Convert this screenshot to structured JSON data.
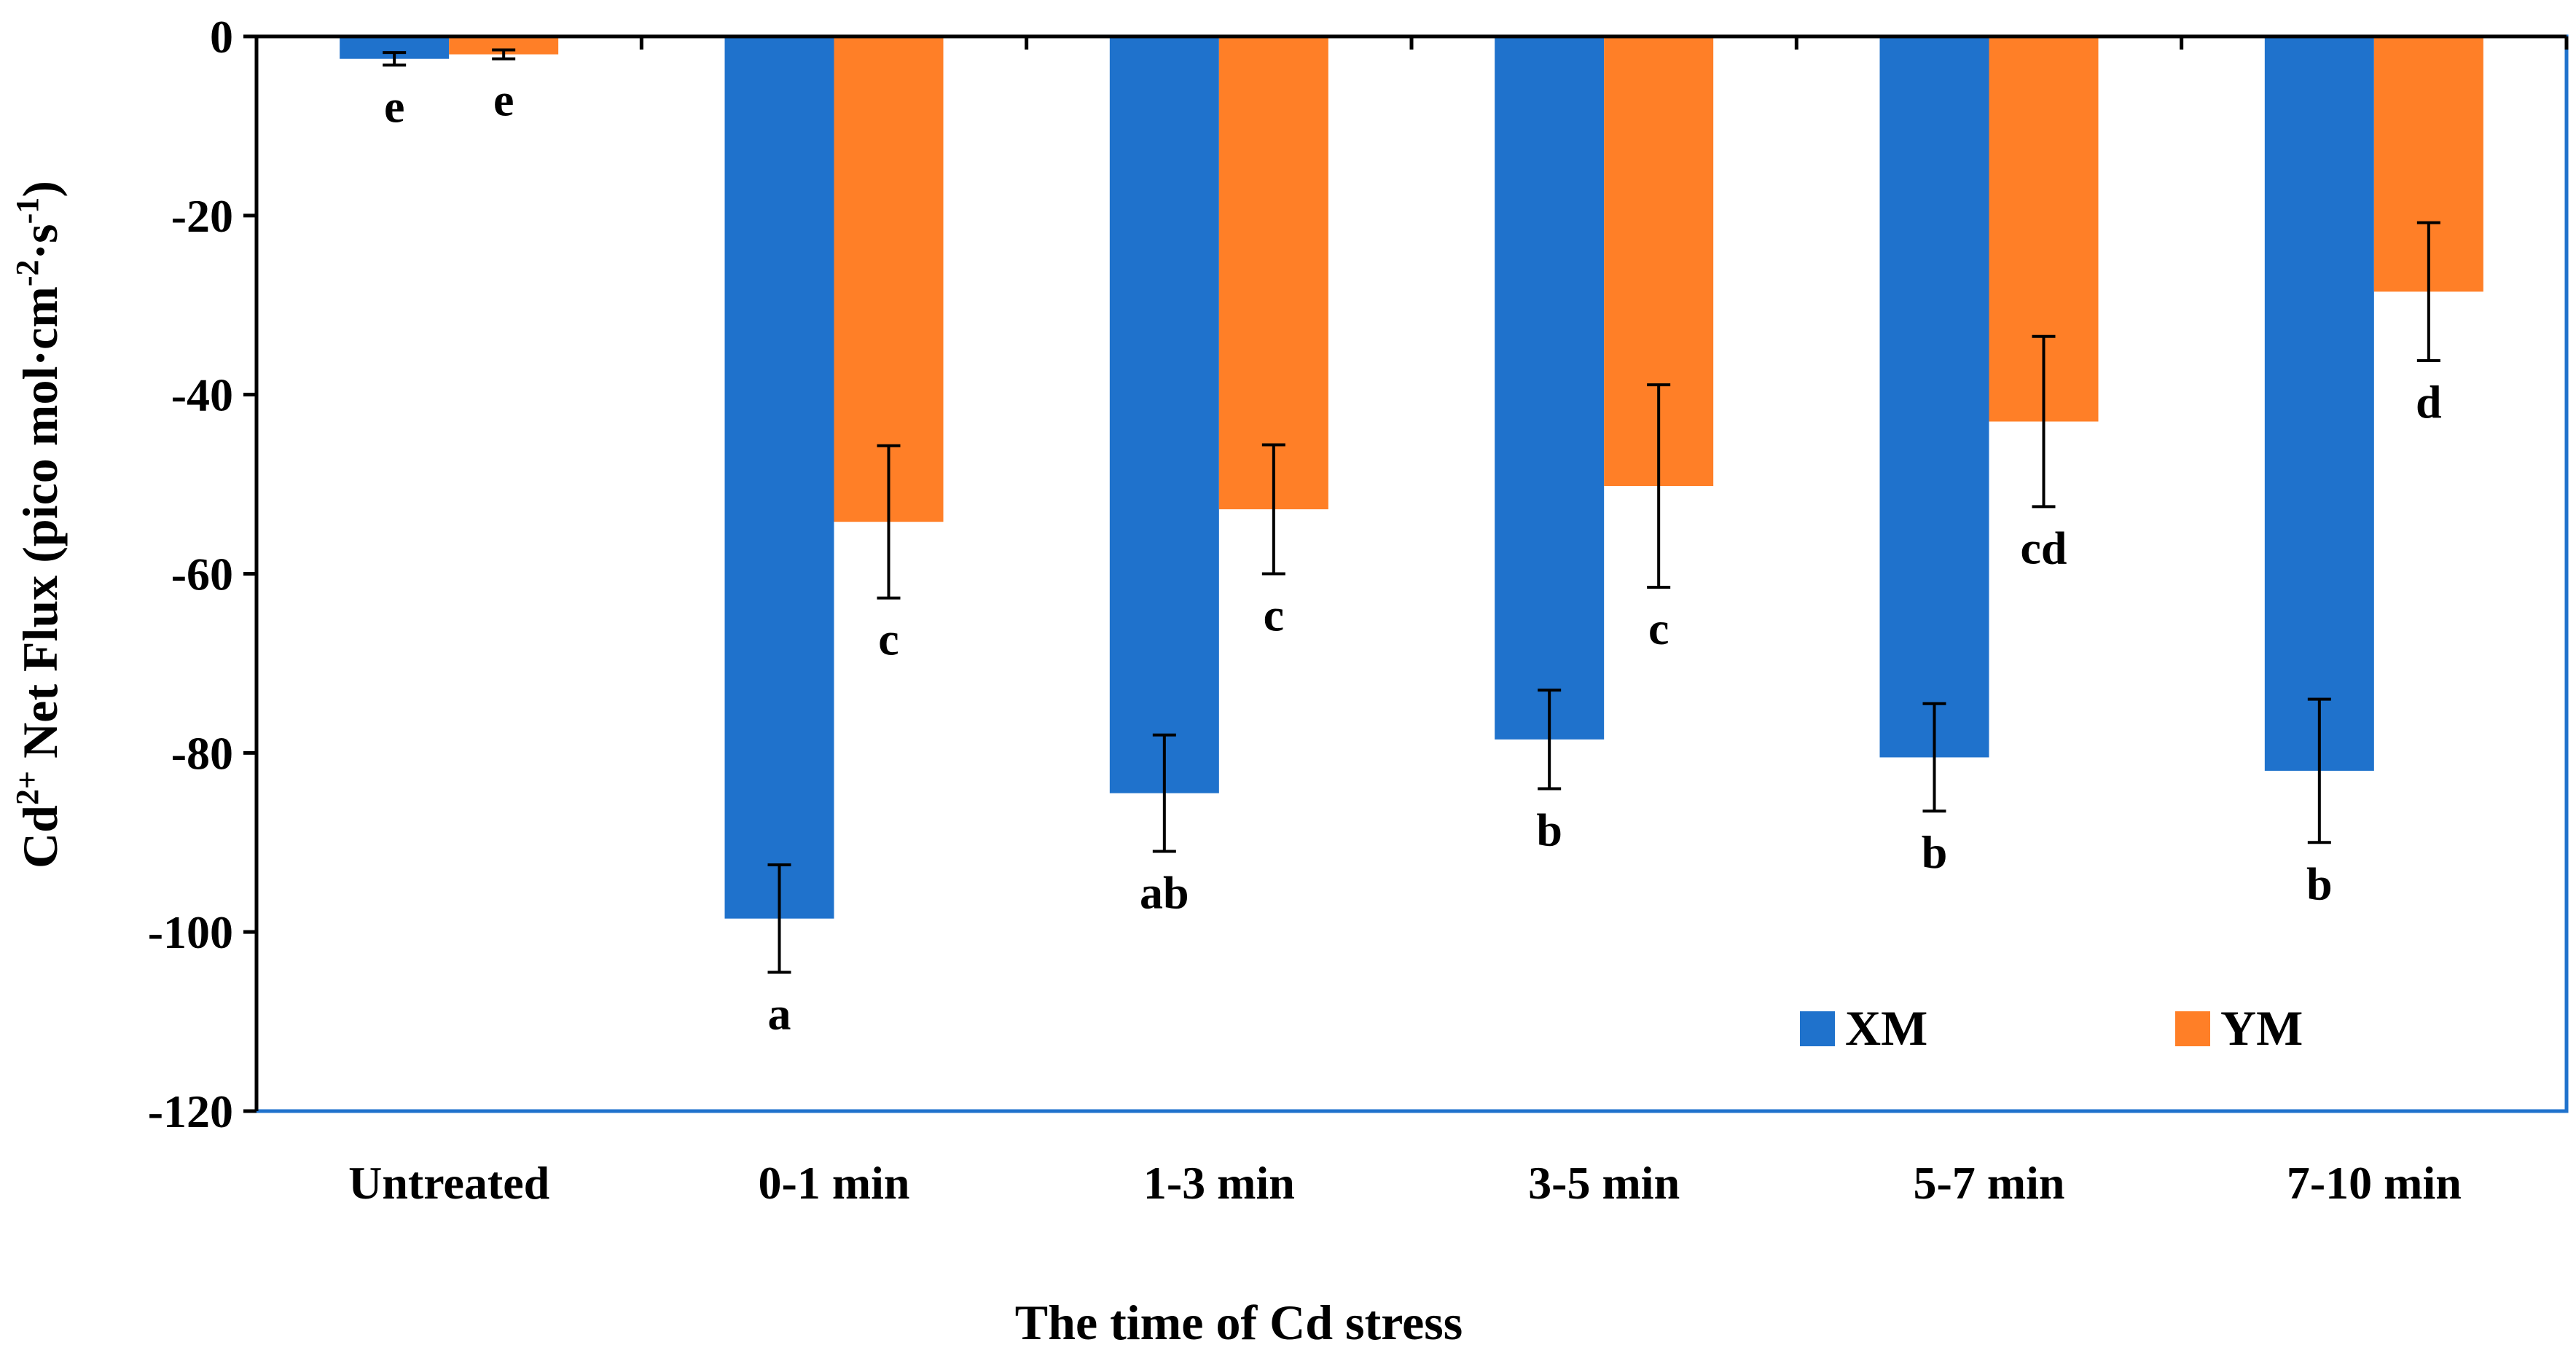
{
  "chart_data": {
    "type": "bar",
    "title": "",
    "xlabel": "The time of Cd stress",
    "ylabel": {
      "base": "Cd",
      "base_sup": "2+",
      "mid": " Net Flux (pico mol·cm",
      "mid_sup": "-2",
      "dot": "·s",
      "end_sup": "-1",
      "end": ")"
    },
    "ylim": [
      -120,
      0
    ],
    "yticks": [
      0,
      -20,
      -40,
      -60,
      -80,
      -100,
      -120
    ],
    "categories": [
      "Untreated",
      "0-1 min",
      "1-3 min",
      "3-5 min",
      "5-7 min",
      "7-10 min"
    ],
    "series": [
      {
        "name": "XM",
        "color": "#1F72CC",
        "values": [
          -2.5,
          -98.5,
          -84.5,
          -78.5,
          -80.5,
          -82
        ],
        "errors": [
          0.7,
          6,
          6.5,
          5.5,
          6,
          8
        ],
        "labels": [
          "e",
          "a",
          "ab",
          "b",
          "b",
          "b"
        ]
      },
      {
        "name": "YM",
        "color": "#FF7F27",
        "values": [
          -2,
          -54.2,
          -52.8,
          -50.2,
          -43,
          -28.5
        ],
        "errors": [
          0.5,
          8.5,
          7.2,
          11.3,
          9.5,
          7.7
        ],
        "labels": [
          "e",
          "c",
          "c",
          "c",
          "cd",
          "d"
        ]
      }
    ],
    "legend_position": "bottom-right",
    "grid": false
  }
}
